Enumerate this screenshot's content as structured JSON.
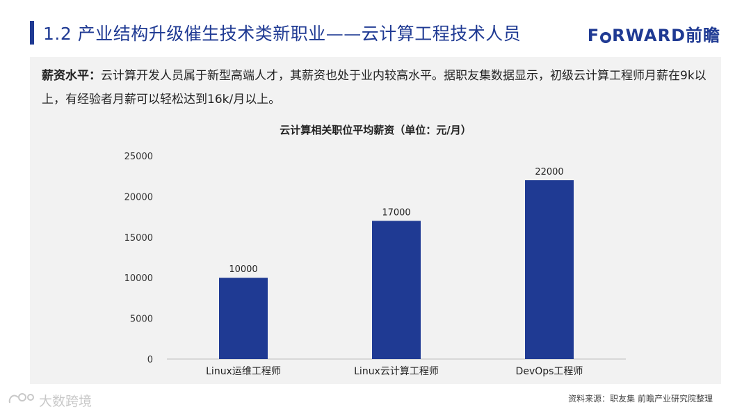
{
  "header": {
    "title": "1.2 产业结构升级催生技术类新职业——云计算工程技术人员",
    "logo_latin_pre": "F",
    "logo_latin_post": "RWARD",
    "logo_cn": "前瞻"
  },
  "description": {
    "label": "薪资水平：",
    "text": "云计算开发人员属于新型高端人才，其薪资也处于业内较高水平。据职友集数据显示，初级云计算工程师月薪在9k以上，有经验者月薪可以轻松达到16k/月以上。"
  },
  "chart_data": {
    "type": "bar",
    "title": "云计算相关职位平均薪资（单位：元/月）",
    "categories": [
      "Linux运维工程师",
      "Linux云计算工程师",
      "DevOps工程师"
    ],
    "values": [
      10000,
      17000,
      22000
    ],
    "ylim": [
      0,
      25000
    ],
    "yticks": [
      0,
      5000,
      10000,
      15000,
      20000,
      25000
    ],
    "bar_color": "#1f3a93",
    "grid": false,
    "data_labels": true
  },
  "footer": {
    "source": "资料来源：职友集 前瞻产业研究院整理",
    "brand": "大数跨境"
  },
  "colors": {
    "accent": "#1f3a93",
    "panel": "#f2f2f2"
  }
}
